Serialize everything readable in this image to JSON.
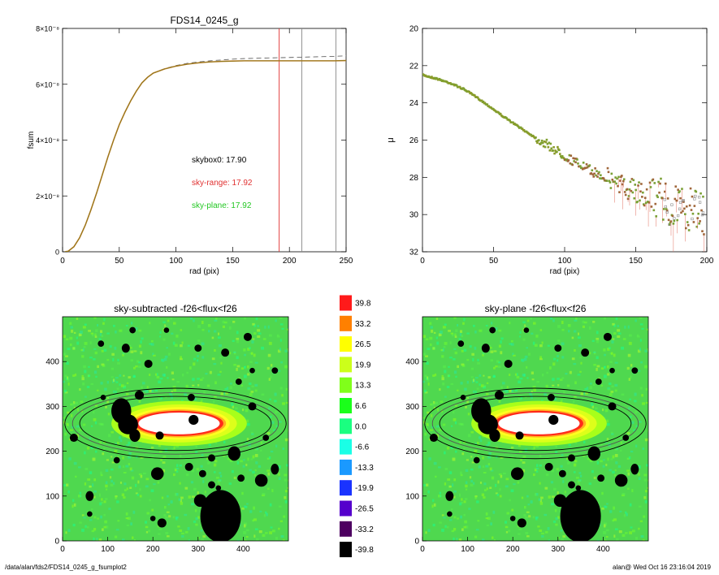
{
  "footer": {
    "left": "/data/alan/fds2/FDS14_0245_g_fsumplot2",
    "right": "alan@  Wed Oct 16 23:16:04 2019"
  },
  "colors": {
    "curve_olive": "#8a7a1a",
    "curve_orange": "#c07a28",
    "sky_range_red": "#e03030",
    "sky_plane_green": "#22c722",
    "field_green": "#4fd84f"
  },
  "chart_data": [
    {
      "id": "fsum_panel",
      "type": "line",
      "title": "FDS14_0245_g",
      "xlabel": "rad (pix)",
      "ylabel": "fsum",
      "xlim": [
        0,
        250
      ],
      "ylim": [
        0,
        8e-08
      ],
      "xticks": [
        "0",
        "50",
        "100",
        "150",
        "200",
        "250"
      ],
      "yticks": [
        "0",
        "2×10⁻⁸",
        "4×10⁻⁸",
        "6×10⁻⁸",
        "8×10⁻⁸"
      ],
      "x": [
        2,
        5,
        10,
        15,
        20,
        25,
        30,
        35,
        40,
        45,
        50,
        55,
        60,
        65,
        70,
        75,
        80,
        90,
        100,
        110,
        120,
        130,
        140,
        150,
        160,
        170,
        180,
        190,
        200,
        210,
        220,
        230,
        240,
        250
      ],
      "series": [
        {
          "values": [
            0.0,
            2e-10,
            1.8e-09,
            5e-09,
            9.5e-09,
            1.5e-08,
            2.1e-08,
            2.75e-08,
            3.4e-08,
            4e-08,
            4.55e-08,
            5e-08,
            5.4e-08,
            5.75e-08,
            6.05e-08,
            6.25e-08,
            6.4e-08,
            6.55e-08,
            6.65e-08,
            6.72e-08,
            6.77e-08,
            6.8e-08,
            6.82e-08,
            6.83e-08,
            6.84e-08,
            6.84e-08,
            6.84e-08,
            6.84e-08,
            6.84e-08,
            6.84e-08,
            6.84e-08,
            6.84e-08,
            6.84e-08,
            6.85e-08
          ]
        },
        {
          "values": [
            0.0,
            2e-10,
            1.8e-09,
            5e-09,
            9.5e-09,
            1.5e-08,
            2.1e-08,
            2.75e-08,
            3.4e-08,
            4e-08,
            4.55e-08,
            5e-08,
            5.4e-08,
            5.75e-08,
            6.05e-08,
            6.25e-08,
            6.4e-08,
            6.56e-08,
            6.67e-08,
            6.75e-08,
            6.8e-08,
            6.84e-08,
            6.87e-08,
            6.9e-08,
            6.92e-08,
            6.93e-08,
            6.94e-08,
            6.95e-08,
            6.96e-08,
            6.97e-08,
            6.98e-08,
            6.99e-08,
            7e-08,
            7.02e-08
          ]
        }
      ],
      "vlines": [
        {
          "x": 191,
          "color": "#e03030"
        },
        {
          "x": 211,
          "color": "#888888"
        },
        {
          "x": 241,
          "color": "#888888"
        }
      ],
      "annotations": [
        {
          "text": "skybox0: 17.90",
          "color": "#000000"
        },
        {
          "text": "sky-range: 17.92",
          "color": "#e03030"
        },
        {
          "text": "sky-plane: 17.92",
          "color": "#22c722"
        }
      ]
    },
    {
      "id": "mu_panel",
      "type": "scatter",
      "title": "",
      "xlabel": "rad (pix)",
      "ylabel": "μ",
      "xlim": [
        0,
        200
      ],
      "ylim": [
        32,
        20
      ],
      "xticks": [
        "0",
        "50",
        "100",
        "150",
        "200"
      ],
      "yticks": [
        "20",
        "22",
        "24",
        "26",
        "28",
        "30",
        "32"
      ],
      "profile_x": [
        0,
        10,
        20,
        30,
        40,
        50,
        60,
        70,
        80,
        90,
        100,
        110,
        120,
        130,
        140,
        150,
        160,
        170,
        180,
        190,
        200
      ],
      "profile_y": [
        22.5,
        22.7,
        22.95,
        23.3,
        23.8,
        24.35,
        24.9,
        25.4,
        25.9,
        26.35,
        26.85,
        27.3,
        27.7,
        28.05,
        28.4,
        28.75,
        29.05,
        29.3,
        29.55,
        29.8,
        30.1
      ]
    },
    {
      "id": "sky_subtracted_panel",
      "type": "heatmap",
      "title": "sky-subtracted -f26<flux<f26",
      "xlim": [
        0,
        500
      ],
      "ylim": [
        0,
        500
      ],
      "xticks": [
        "0",
        "100",
        "200",
        "300",
        "400"
      ],
      "yticks": [
        "0",
        "100",
        "200",
        "300",
        "400"
      ]
    },
    {
      "id": "sky_plane_panel",
      "type": "heatmap",
      "title": "sky-plane -f26<flux<f26",
      "xlim": [
        0,
        500
      ],
      "ylim": [
        0,
        500
      ],
      "xticks": [
        "0",
        "100",
        "200",
        "300",
        "400"
      ],
      "yticks": [
        "0",
        "100",
        "200",
        "300",
        "400"
      ]
    },
    {
      "id": "colorbar",
      "type": "table",
      "levels": [
        {
          "label": "39.8",
          "color": "#ff1a1a"
        },
        {
          "label": "33.2",
          "color": "#ff8000"
        },
        {
          "label": "26.5",
          "color": "#ffff00"
        },
        {
          "label": "19.9",
          "color": "#ccff1a"
        },
        {
          "label": "13.3",
          "color": "#80ff1a"
        },
        {
          "label": "6.6",
          "color": "#1aff1a"
        },
        {
          "label": "0.0",
          "color": "#1aff80"
        },
        {
          "label": "-6.6",
          "color": "#1affe6"
        },
        {
          "label": "-13.3",
          "color": "#1a99ff"
        },
        {
          "label": "-19.9",
          "color": "#1a33ff"
        },
        {
          "label": "-26.5",
          "color": "#5500cc"
        },
        {
          "label": "-33.2",
          "color": "#4d0060"
        },
        {
          "label": "-39.8",
          "color": "#000000"
        }
      ]
    }
  ]
}
